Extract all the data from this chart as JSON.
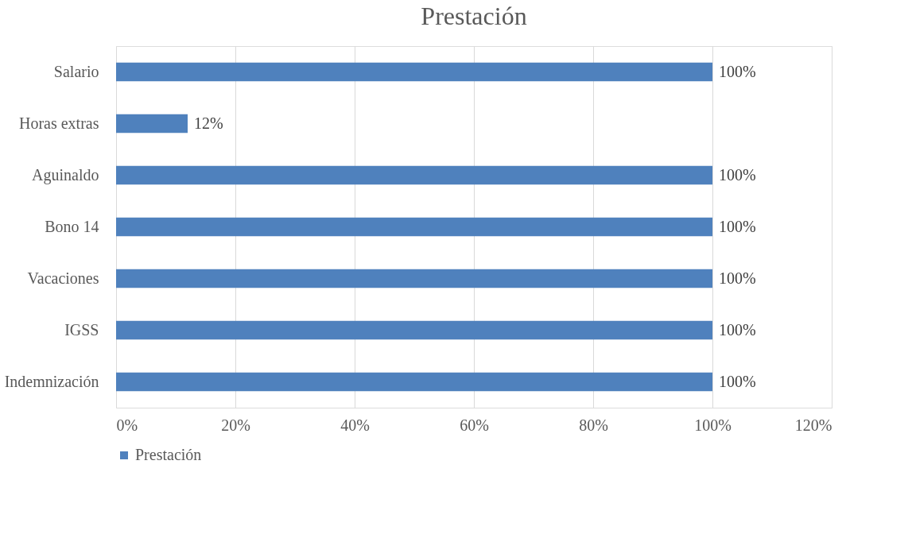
{
  "chart_data": {
    "type": "bar",
    "orientation": "horizontal",
    "title": "Prestación",
    "categories": [
      "Salario",
      "Horas extras",
      "Aguinaldo",
      "Bono 14",
      "Vacaciones",
      "IGSS",
      "Indemnización"
    ],
    "series": [
      {
        "name": "Prestación",
        "color": "#4f81bd",
        "values": [
          100,
          12,
          100,
          100,
          100,
          100,
          100
        ]
      }
    ],
    "value_labels": [
      "100%",
      "12%",
      "100%",
      "100%",
      "100%",
      "100%",
      "100%"
    ],
    "xlim": [
      0,
      120
    ],
    "xticks": [
      {
        "value": 0,
        "label": "0%"
      },
      {
        "value": 20,
        "label": "20%"
      },
      {
        "value": 40,
        "label": "40%"
      },
      {
        "value": 60,
        "label": "60%"
      },
      {
        "value": 80,
        "label": "80%"
      },
      {
        "value": 100,
        "label": "100%"
      },
      {
        "value": 120,
        "label": "120%"
      }
    ],
    "grid": "x",
    "legend": "bottom"
  }
}
